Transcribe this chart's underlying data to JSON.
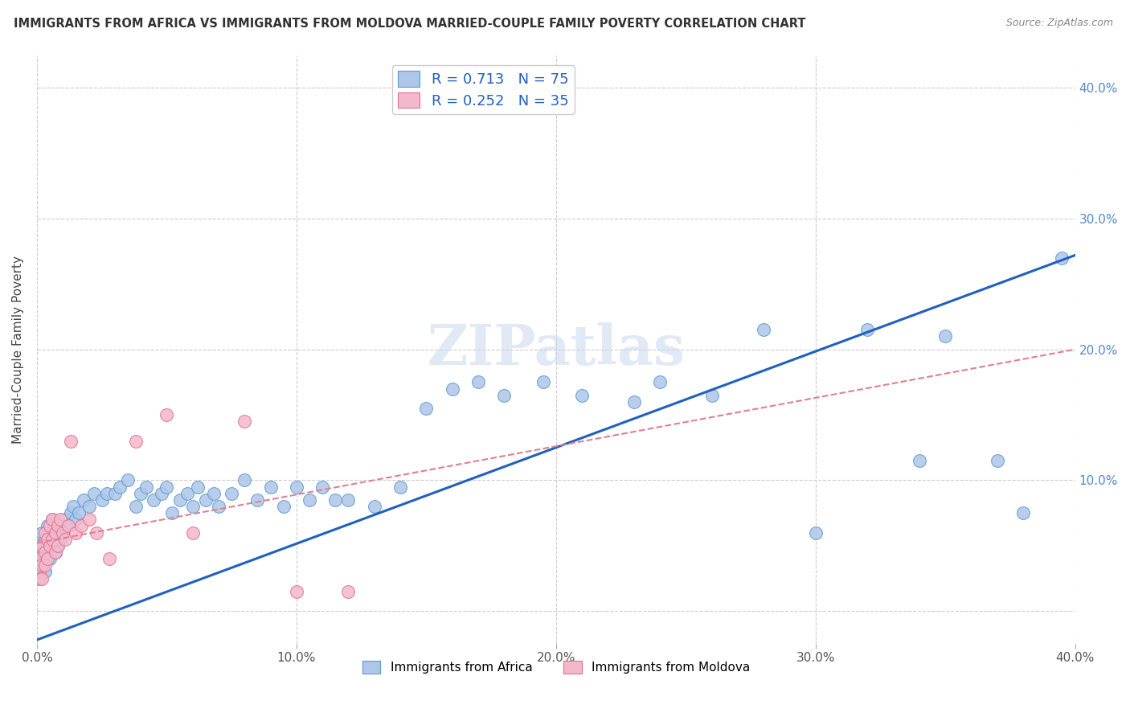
{
  "title": "IMMIGRANTS FROM AFRICA VS IMMIGRANTS FROM MOLDOVA MARRIED-COUPLE FAMILY POVERTY CORRELATION CHART",
  "source": "Source: ZipAtlas.com",
  "ylabel": "Married-Couple Family Poverty",
  "xlim": [
    0.0,
    0.4
  ],
  "ylim": [
    -0.025,
    0.425
  ],
  "xticks": [
    0.0,
    0.1,
    0.2,
    0.3,
    0.4
  ],
  "yticks": [
    0.0,
    0.1,
    0.2,
    0.3,
    0.4
  ],
  "xtick_labels": [
    "0.0%",
    "10.0%",
    "20.0%",
    "30.0%",
    "40.0%"
  ],
  "ytick_labels_right": [
    "",
    "10.0%",
    "20.0%",
    "30.0%",
    "40.0%"
  ],
  "africa_color": "#aec6e8",
  "africa_edge": "#5b9bd5",
  "moldova_color": "#f4b8cc",
  "moldova_edge": "#e07090",
  "africa_R": 0.713,
  "africa_N": 75,
  "moldova_R": 0.252,
  "moldova_N": 35,
  "legend_color": "#2060c0",
  "watermark": "ZIPatlas",
  "background_color": "#ffffff",
  "grid_color": "#cccccc",
  "africa_line_color": "#2060c0",
  "moldova_line_color": "#e08090",
  "africa_line_intercept": -0.022,
  "africa_line_slope": 0.735,
  "moldova_line_intercept": 0.052,
  "moldova_line_slope": 0.37,
  "africa_scatter_x": [
    0.001,
    0.001,
    0.002,
    0.002,
    0.002,
    0.003,
    0.003,
    0.004,
    0.004,
    0.005,
    0.005,
    0.006,
    0.007,
    0.007,
    0.008,
    0.008,
    0.009,
    0.01,
    0.011,
    0.012,
    0.013,
    0.014,
    0.015,
    0.016,
    0.018,
    0.02,
    0.022,
    0.025,
    0.027,
    0.03,
    0.032,
    0.035,
    0.038,
    0.04,
    0.042,
    0.045,
    0.048,
    0.05,
    0.052,
    0.055,
    0.058,
    0.06,
    0.062,
    0.065,
    0.068,
    0.07,
    0.075,
    0.08,
    0.085,
    0.09,
    0.095,
    0.1,
    0.105,
    0.11,
    0.115,
    0.12,
    0.13,
    0.14,
    0.15,
    0.16,
    0.17,
    0.18,
    0.195,
    0.21,
    0.23,
    0.24,
    0.26,
    0.28,
    0.3,
    0.32,
    0.34,
    0.35,
    0.37,
    0.38,
    0.395
  ],
  "africa_scatter_y": [
    0.05,
    0.04,
    0.06,
    0.045,
    0.035,
    0.055,
    0.03,
    0.05,
    0.065,
    0.04,
    0.055,
    0.07,
    0.045,
    0.06,
    0.05,
    0.065,
    0.055,
    0.06,
    0.07,
    0.065,
    0.075,
    0.08,
    0.07,
    0.075,
    0.085,
    0.08,
    0.09,
    0.085,
    0.09,
    0.09,
    0.095,
    0.1,
    0.08,
    0.09,
    0.095,
    0.085,
    0.09,
    0.095,
    0.075,
    0.085,
    0.09,
    0.08,
    0.095,
    0.085,
    0.09,
    0.08,
    0.09,
    0.1,
    0.085,
    0.095,
    0.08,
    0.095,
    0.085,
    0.095,
    0.085,
    0.085,
    0.08,
    0.095,
    0.155,
    0.17,
    0.175,
    0.165,
    0.175,
    0.165,
    0.16,
    0.175,
    0.165,
    0.215,
    0.06,
    0.215,
    0.115,
    0.21,
    0.115,
    0.075,
    0.27
  ],
  "moldova_scatter_x": [
    0.001,
    0.001,
    0.001,
    0.002,
    0.002,
    0.002,
    0.003,
    0.003,
    0.003,
    0.004,
    0.004,
    0.005,
    0.005,
    0.006,
    0.006,
    0.007,
    0.007,
    0.008,
    0.008,
    0.009,
    0.01,
    0.011,
    0.012,
    0.013,
    0.015,
    0.017,
    0.02,
    0.023,
    0.028,
    0.038,
    0.05,
    0.06,
    0.08,
    0.1,
    0.12
  ],
  "moldova_scatter_y": [
    0.04,
    0.03,
    0.025,
    0.05,
    0.035,
    0.025,
    0.06,
    0.045,
    0.035,
    0.055,
    0.04,
    0.065,
    0.05,
    0.07,
    0.055,
    0.06,
    0.045,
    0.065,
    0.05,
    0.07,
    0.06,
    0.055,
    0.065,
    0.13,
    0.06,
    0.065,
    0.07,
    0.06,
    0.04,
    0.13,
    0.15,
    0.06,
    0.145,
    0.015,
    0.015
  ]
}
